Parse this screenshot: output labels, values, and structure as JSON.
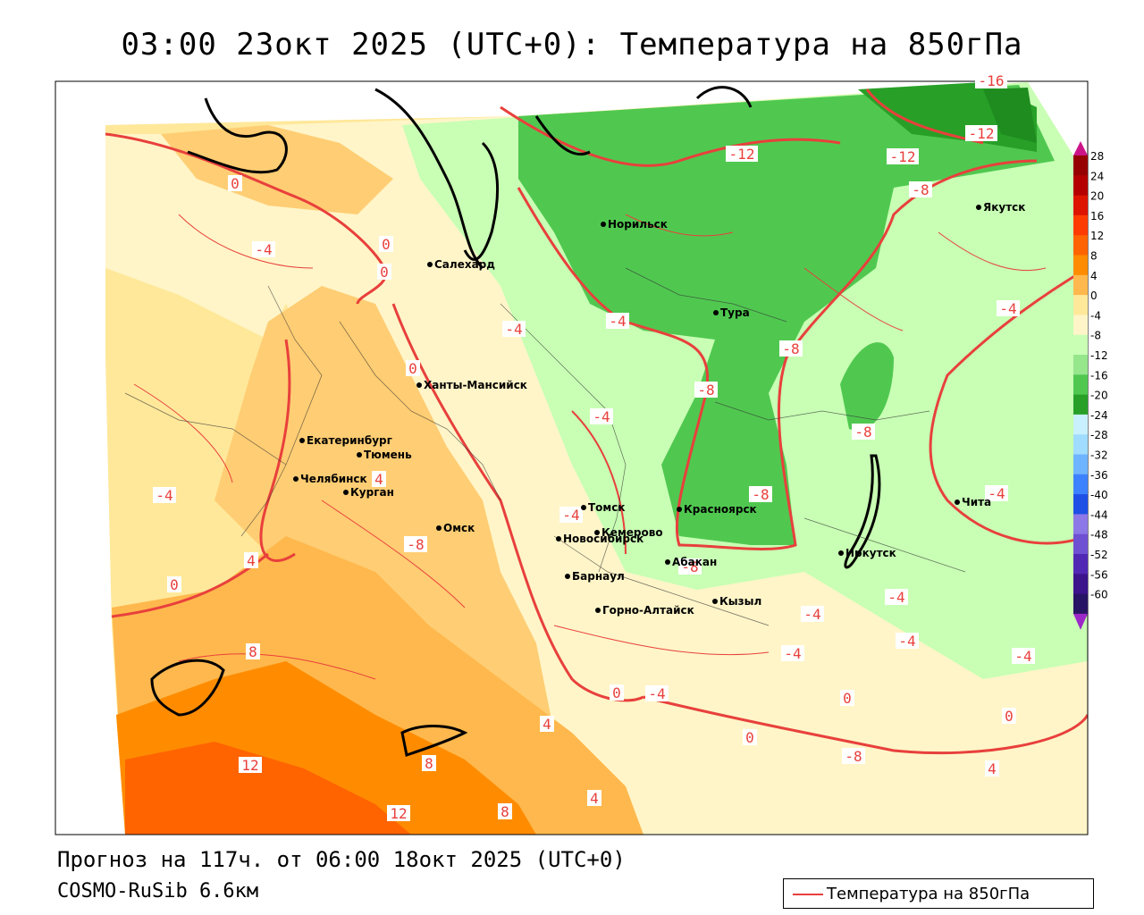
{
  "title": "03:00 23окт 2025 (UTC+0): Температура на 850гПа",
  "forecast_line": "Прогноз на 117ч. от 06:00 18окт 2025 (UTC+0)",
  "model_line": "COSMO-RuSib 6.6км",
  "legend_label": "Температура на 850гПа",
  "colors": {
    "isotherm": "#e8403c",
    "warm8": "#ff8c00",
    "warm4": "#ffb84d",
    "warm0": "#ffe89a",
    "cold0": "#fff5c8",
    "cold4": "#c8ffb4",
    "cold8": "#96e68c",
    "cold12": "#50c850"
  },
  "colorbar": {
    "levels": [
      "28",
      "24",
      "20",
      "16",
      "12",
      "8",
      "4",
      "0",
      "-4",
      "-8",
      "-12",
      "-16",
      "-20",
      "-24",
      "-28",
      "-32",
      "-36",
      "-40",
      "-44",
      "-48",
      "-52",
      "-56",
      "-60"
    ],
    "colors": [
      "#960000",
      "#b40000",
      "#dc1400",
      "#ff3c00",
      "#ff6400",
      "#ff8c00",
      "#ffb84d",
      "#ffe89a",
      "#fff5c8",
      "#c8ffb4",
      "#96e68c",
      "#50c850",
      "#28a028",
      "#c8f0ff",
      "#a0dcff",
      "#6eb4ff",
      "#3c82ff",
      "#1e50e6",
      "#8c78e6",
      "#6e50d2",
      "#5028b4",
      "#3c148c",
      "#281464"
    ]
  },
  "cities": [
    {
      "name": "Норильск"
    },
    {
      "name": "Якутск"
    },
    {
      "name": "Салехард"
    },
    {
      "name": "Тура"
    },
    {
      "name": "Ханты-Мансийск"
    },
    {
      "name": "Екатеринбург"
    },
    {
      "name": "Тюмень"
    },
    {
      "name": "Челябинск"
    },
    {
      "name": "Курган"
    },
    {
      "name": "Томск"
    },
    {
      "name": "Красноярск"
    },
    {
      "name": "Омск"
    },
    {
      "name": "Новосибирск"
    },
    {
      "name": "Кемерово"
    },
    {
      "name": "Абакан"
    },
    {
      "name": "Иркутск"
    },
    {
      "name": "Чита"
    },
    {
      "name": "Барнаул"
    },
    {
      "name": "Кызыл"
    },
    {
      "name": "Горно-Алтайск"
    }
  ],
  "isotherm_labels": [
    "0",
    "-4",
    "0",
    "0",
    "-4",
    "0",
    "-4",
    "-4",
    "-4",
    "4",
    "4",
    "0",
    "8",
    "12",
    "8",
    "12",
    "8",
    "4",
    "4",
    "0",
    "-4",
    "-12",
    "-12",
    "-12",
    "-8",
    "-8",
    "-8",
    "-8",
    "-8",
    "-4",
    "-4",
    "-8",
    "-4",
    "-4",
    "-4",
    "-4",
    "-4",
    "0",
    "0",
    "4",
    "0",
    "-8",
    "-8",
    "-4",
    "-16"
  ]
}
